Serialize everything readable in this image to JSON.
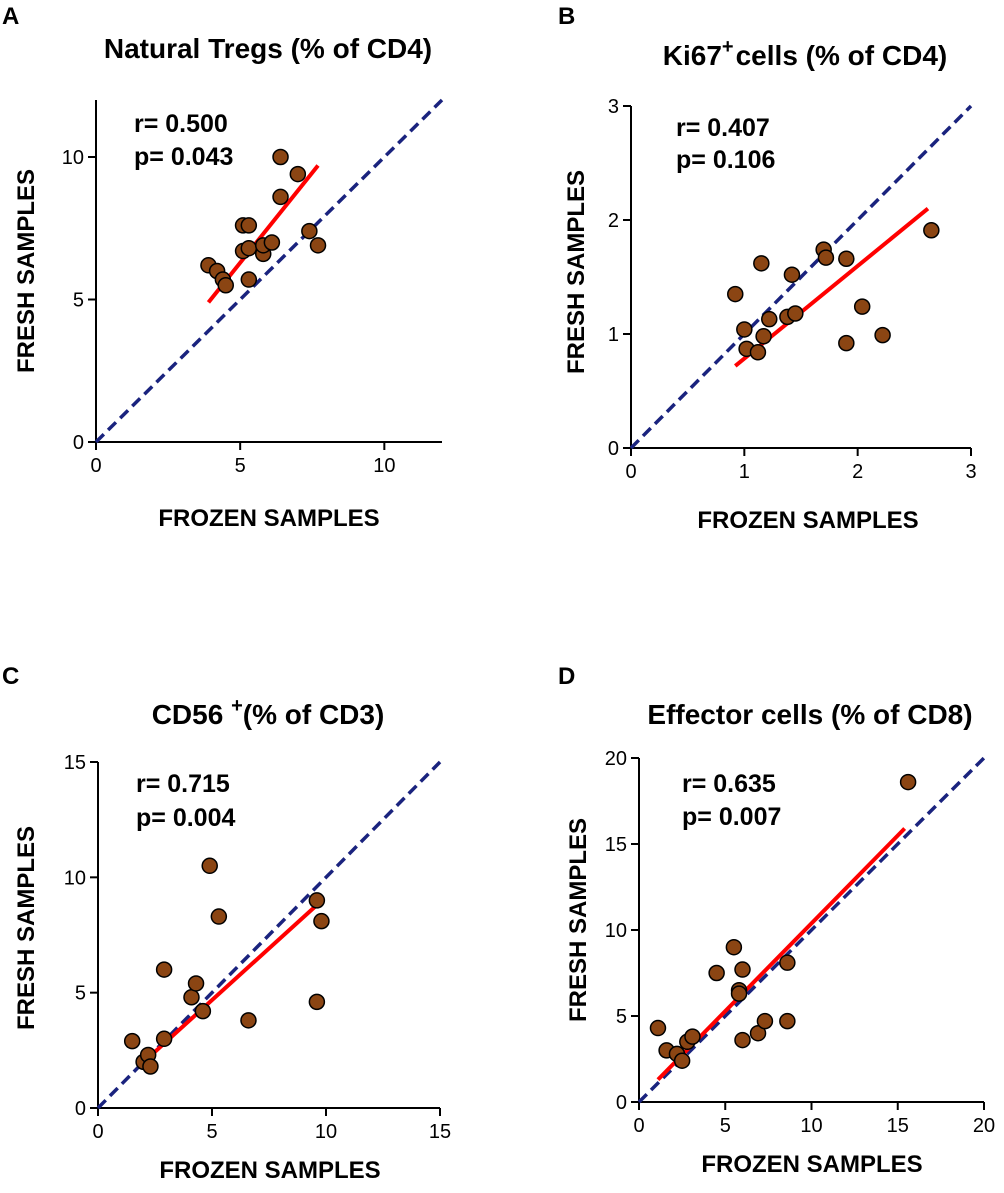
{
  "chart_data": [
    {
      "type": "scatter",
      "panel_label": "A",
      "title": "Natural Tregs (% of CD4)",
      "title_main": "Natural Tregs (% of CD4)",
      "title_sup": "",
      "title_rest": "",
      "xlabel": "FROZEN SAMPLES",
      "ylabel": "FRESH SAMPLES",
      "xlim": [
        0,
        12
      ],
      "ylim": [
        0,
        12
      ],
      "xticks": [
        0,
        5,
        10
      ],
      "yticks": [
        0,
        5,
        10
      ],
      "x_tick_labels": [
        "0",
        "5",
        "10"
      ],
      "y_tick_labels": [
        "0",
        "5",
        "10"
      ],
      "r_text": "r= 0.500",
      "p_text": "p= 0.043",
      "identity_line": {
        "from": [
          0,
          0
        ],
        "to": [
          12,
          12
        ]
      },
      "fit_line": {
        "from": [
          3.9,
          4.9
        ],
        "to": [
          7.7,
          9.7
        ]
      },
      "points": [
        {
          "x": 3.9,
          "y": 6.2
        },
        {
          "x": 4.2,
          "y": 6.0
        },
        {
          "x": 4.4,
          "y": 5.7
        },
        {
          "x": 4.5,
          "y": 5.5
        },
        {
          "x": 5.1,
          "y": 6.7
        },
        {
          "x": 5.1,
          "y": 7.6
        },
        {
          "x": 5.3,
          "y": 7.6
        },
        {
          "x": 5.3,
          "y": 6.8
        },
        {
          "x": 5.3,
          "y": 5.7
        },
        {
          "x": 5.8,
          "y": 6.6
        },
        {
          "x": 5.8,
          "y": 6.9
        },
        {
          "x": 6.1,
          "y": 7.0
        },
        {
          "x": 6.4,
          "y": 10.0
        },
        {
          "x": 6.4,
          "y": 8.6
        },
        {
          "x": 7.0,
          "y": 9.4
        },
        {
          "x": 7.4,
          "y": 7.4
        },
        {
          "x": 7.7,
          "y": 6.9
        }
      ]
    },
    {
      "type": "scatter",
      "panel_label": "B",
      "title": "Ki67+ cells (% of CD4)",
      "title_main": "Ki67",
      "title_sup": "+",
      "title_rest": "cells (% of CD4)",
      "xlabel": "FROZEN SAMPLES",
      "ylabel": "FRESH SAMPLES",
      "xlim": [
        0,
        3
      ],
      "ylim": [
        0,
        3
      ],
      "xticks": [
        0,
        1,
        2,
        3
      ],
      "yticks": [
        0,
        1,
        2,
        3
      ],
      "x_tick_labels": [
        "0",
        "1",
        "2",
        "3"
      ],
      "y_tick_labels": [
        "0",
        "1",
        "2",
        "3"
      ],
      "r_text": "r= 0.407",
      "p_text": "p= 0.106",
      "identity_line": {
        "from": [
          0,
          0
        ],
        "to": [
          3,
          3
        ]
      },
      "fit_line": {
        "from": [
          0.92,
          0.72
        ],
        "to": [
          2.62,
          2.1
        ]
      },
      "points": [
        {
          "x": 0.92,
          "y": 1.35
        },
        {
          "x": 1.0,
          "y": 1.04
        },
        {
          "x": 1.02,
          "y": 0.87
        },
        {
          "x": 1.12,
          "y": 0.84
        },
        {
          "x": 1.15,
          "y": 1.62
        },
        {
          "x": 1.17,
          "y": 0.98
        },
        {
          "x": 1.22,
          "y": 1.13
        },
        {
          "x": 1.38,
          "y": 1.15
        },
        {
          "x": 1.42,
          "y": 1.52
        },
        {
          "x": 1.45,
          "y": 1.18
        },
        {
          "x": 1.7,
          "y": 1.74
        },
        {
          "x": 1.72,
          "y": 1.67
        },
        {
          "x": 1.9,
          "y": 1.66
        },
        {
          "x": 1.9,
          "y": 0.92
        },
        {
          "x": 2.04,
          "y": 1.24
        },
        {
          "x": 2.22,
          "y": 0.99
        },
        {
          "x": 2.65,
          "y": 1.91
        }
      ]
    },
    {
      "type": "scatter",
      "panel_label": "C",
      "title": "CD56 +(% of CD3)",
      "title_main": "CD56 ",
      "title_sup": "+",
      "title_rest": "(% of CD3)",
      "xlabel": "FROZEN SAMPLES",
      "ylabel": "FRESH SAMPLES",
      "xlim": [
        0,
        15
      ],
      "ylim": [
        0,
        15
      ],
      "xticks": [
        0,
        5,
        10,
        15
      ],
      "yticks": [
        0,
        5,
        10,
        15
      ],
      "x_tick_labels": [
        "0",
        "5",
        "10",
        "15"
      ],
      "y_tick_labels": [
        "0",
        "5",
        "10",
        "15"
      ],
      "r_text": "r= 0.715",
      "p_text": "p= 0.004",
      "identity_line": {
        "from": [
          0,
          0
        ],
        "to": [
          15,
          15
        ]
      },
      "fit_line": {
        "from": [
          1.9,
          1.9
        ],
        "to": [
          9.6,
          8.8
        ]
      },
      "points": [
        {
          "x": 1.5,
          "y": 2.9
        },
        {
          "x": 2.0,
          "y": 2.0
        },
        {
          "x": 2.2,
          "y": 2.3
        },
        {
          "x": 2.3,
          "y": 1.8
        },
        {
          "x": 2.9,
          "y": 3.0
        },
        {
          "x": 2.9,
          "y": 6.0
        },
        {
          "x": 4.1,
          "y": 4.8
        },
        {
          "x": 4.3,
          "y": 5.4
        },
        {
          "x": 4.6,
          "y": 4.2
        },
        {
          "x": 4.9,
          "y": 10.5
        },
        {
          "x": 5.3,
          "y": 8.3
        },
        {
          "x": 6.6,
          "y": 3.8
        },
        {
          "x": 9.6,
          "y": 9.0
        },
        {
          "x": 9.6,
          "y": 4.6
        },
        {
          "x": 9.8,
          "y": 8.1
        }
      ]
    },
    {
      "type": "scatter",
      "panel_label": "D",
      "title": "Effector cells (% of CD8)",
      "title_main": "Effector cells (% of CD8)",
      "title_sup": "",
      "title_rest": "",
      "xlabel": "FROZEN SAMPLES",
      "ylabel": "FRESH SAMPLES",
      "xlim": [
        0,
        20
      ],
      "ylim": [
        0,
        20
      ],
      "xticks": [
        0,
        5,
        10,
        15,
        20
      ],
      "yticks": [
        0,
        5,
        10,
        15,
        20
      ],
      "x_tick_labels": [
        "0",
        "5",
        "10",
        "15",
        "20"
      ],
      "y_tick_labels": [
        "0",
        "5",
        "10",
        "15",
        "20"
      ],
      "r_text": "r= 0.635",
      "p_text": "p= 0.007",
      "identity_line": {
        "from": [
          0,
          0
        ],
        "to": [
          20,
          20
        ]
      },
      "fit_line": {
        "from": [
          1.1,
          1.3
        ],
        "to": [
          15.4,
          15.9
        ]
      },
      "points": [
        {
          "x": 1.1,
          "y": 4.3
        },
        {
          "x": 1.6,
          "y": 3.0
        },
        {
          "x": 2.2,
          "y": 2.8
        },
        {
          "x": 2.5,
          "y": 2.4
        },
        {
          "x": 2.8,
          "y": 3.5
        },
        {
          "x": 3.1,
          "y": 3.8
        },
        {
          "x": 4.5,
          "y": 7.5
        },
        {
          "x": 5.5,
          "y": 9.0
        },
        {
          "x": 5.8,
          "y": 6.5
        },
        {
          "x": 5.8,
          "y": 6.3
        },
        {
          "x": 6.0,
          "y": 7.7
        },
        {
          "x": 6.0,
          "y": 3.6
        },
        {
          "x": 6.9,
          "y": 4.0
        },
        {
          "x": 7.3,
          "y": 4.7
        },
        {
          "x": 8.6,
          "y": 8.1
        },
        {
          "x": 8.6,
          "y": 4.7
        },
        {
          "x": 15.6,
          "y": 18.6
        }
      ]
    }
  ],
  "colors": {
    "point_fill": "#8B4513",
    "point_stroke": "#000000",
    "identity_line": "#1a237e",
    "fit_line": "#ff0000",
    "axis": "#000000"
  }
}
